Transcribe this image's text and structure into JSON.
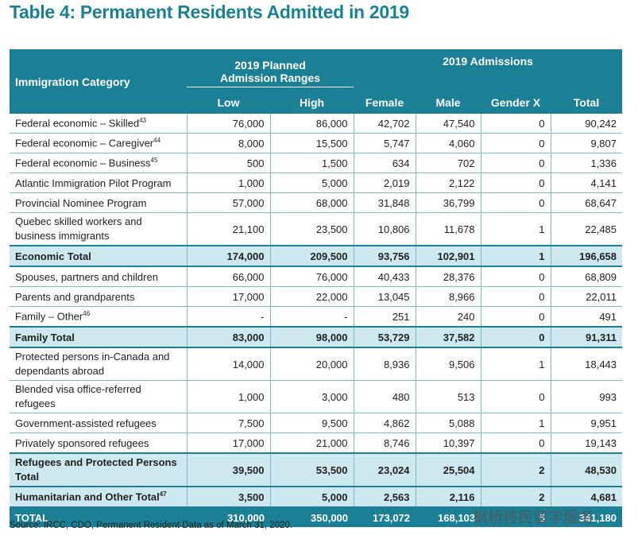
{
  "title": "Table 4: Permanent Residents Admitted in 2019",
  "table": {
    "header": {
      "category": "Immigration Category",
      "planned": "2019 Planned Admission Ranges",
      "admissions": "2019 Admissions",
      "columns": [
        "Low",
        "High",
        "Female",
        "Male",
        "Gender X",
        "Total"
      ]
    },
    "rows": [
      {
        "label": "Federal economic – Skilled",
        "note": "43",
        "cells": [
          "76,000",
          "86,000",
          "42,702",
          "47,540",
          "0",
          "90,242"
        ]
      },
      {
        "label": "Federal economic – Caregiver",
        "note": "44",
        "cells": [
          "8,000",
          "15,500",
          "5,747",
          "4,060",
          "0",
          "9,807"
        ]
      },
      {
        "label": "Federal economic – Business",
        "note": "45",
        "cells": [
          "500",
          "1,500",
          "634",
          "702",
          "0",
          "1,336"
        ]
      },
      {
        "label": "Atlantic Immigration Pilot Program",
        "cells": [
          "1,000",
          "5,000",
          "2,019",
          "2,122",
          "0",
          "4,141"
        ]
      },
      {
        "label": "Provincial Nominee Program",
        "cells": [
          "57,000",
          "68,000",
          "31,848",
          "36,799",
          "0",
          "68,647"
        ]
      },
      {
        "label": "Quebec skilled workers and business immigrants",
        "cells": [
          "21,100",
          "23,500",
          "10,806",
          "11,678",
          "1",
          "22,485"
        ]
      },
      {
        "label": "Economic Total",
        "cells": [
          "174,000",
          "209,500",
          "93,756",
          "102,901",
          "1",
          "196,658"
        ]
      },
      {
        "label": "Spouses, partners and children",
        "cells": [
          "66,000",
          "76,000",
          "40,433",
          "28,376",
          "0",
          "68,809"
        ]
      },
      {
        "label": "Parents and grandparents",
        "cells": [
          "17,000",
          "22,000",
          "13,045",
          "8,966",
          "0",
          "22,011"
        ]
      },
      {
        "label": "Family – Other",
        "note": "46",
        "cells": [
          "-",
          "-",
          "251",
          "240",
          "0",
          "491"
        ]
      },
      {
        "label": "Family Total",
        "cells": [
          "83,000",
          "98,000",
          "53,729",
          "37,582",
          "0",
          "91,311"
        ]
      },
      {
        "label": "Protected persons in-Canada and dependants abroad",
        "cells": [
          "14,000",
          "20,000",
          "8,936",
          "9,506",
          "1",
          "18,443"
        ]
      },
      {
        "label": "Blended visa office-referred refugees",
        "cells": [
          "1,000",
          "3,000",
          "480",
          "513",
          "0",
          "993"
        ]
      },
      {
        "label": "Government-assisted refugees",
        "cells": [
          "7,500",
          "9,500",
          "4,862",
          "5,088",
          "1",
          "9,951"
        ]
      },
      {
        "label": "Privately sponsored refugees",
        "cells": [
          "17,000",
          "21,000",
          "8,746",
          "10,397",
          "0",
          "19,143"
        ]
      },
      {
        "label": "Refugees and Protected Persons Total",
        "cells": [
          "39,500",
          "53,500",
          "23,024",
          "25,504",
          "2",
          "48,530"
        ]
      },
      {
        "label": "Humanitarian and Other Total",
        "note": "47",
        "cells": [
          "3,500",
          "5,000",
          "2,563",
          "2,116",
          "2",
          "4,681"
        ]
      },
      {
        "label": "TOTAL",
        "cells": [
          "310,000",
          "350,000",
          "173,072",
          "168,103",
          "5",
          "341,180"
        ]
      }
    ]
  },
  "source": "Source: IRCC, CDO, Permanent Resident Data as of March 31, 2020.",
  "watermark": "枫桥移民留学服务"
}
